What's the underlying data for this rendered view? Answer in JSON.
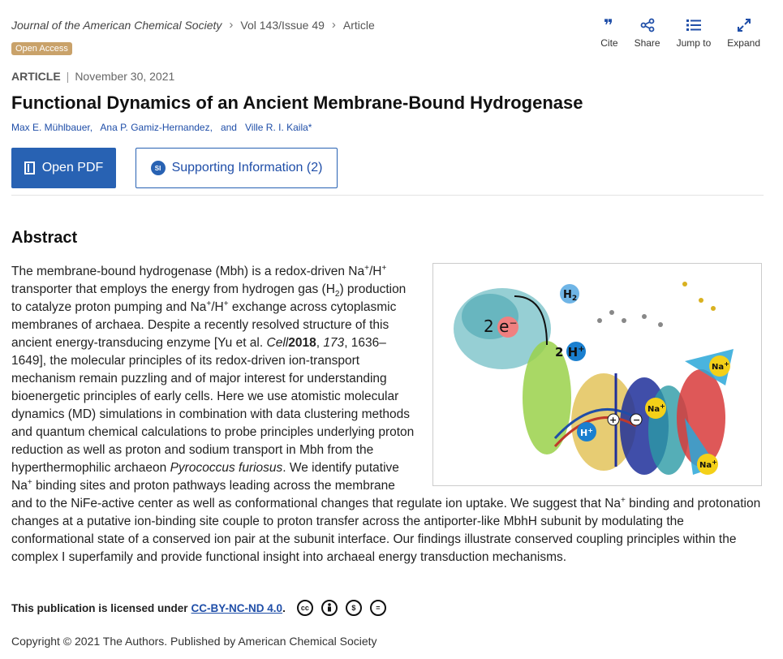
{
  "breadcrumb": [
    "Journal of the American Chemical Society",
    "Vol 143/Issue 49",
    "Article"
  ],
  "badge": "Open Access",
  "tools": [
    {
      "label": "Cite",
      "icon": "quote-icon"
    },
    {
      "label": "Share",
      "icon": "share-icon"
    },
    {
      "label": "Jump to",
      "icon": "list-icon"
    },
    {
      "label": "Expand",
      "icon": "expand-icon"
    }
  ],
  "article": {
    "type": "ARTICLE",
    "date": "November 30, 2021",
    "title": "Functional Dynamics of an Ancient Membrane-Bound Hydrogenase",
    "authors": [
      "Max E. Mühlbauer,",
      "Ana P. Gamiz-Hernandez,",
      "and",
      "Ville R. I. Kaila*"
    ]
  },
  "buttons": {
    "pdf": "Open PDF",
    "si": "Supporting Information (2)",
    "si_badge": "SI"
  },
  "abstract_heading": "Abstract",
  "figure": {
    "labels": [
      "H",
      "2",
      "2 e",
      "−",
      "2 H",
      "+",
      "Na",
      "+",
      "Na",
      "+",
      "Na",
      "+",
      "H",
      "+",
      "+",
      "−"
    ]
  },
  "abstract": {
    "p1": "The membrane-bound hydrogenase (Mbh) is a redox-driven Na",
    "sup_plus": "+",
    "p2": "/H",
    "p3": " transporter that employs the energy from hydrogen gas (H",
    "sub_2": "2",
    "p4": ") production to catalyze proton pumping and Na",
    "p5": "/H",
    "p6": " exchange across cytoplasmic membranes of archaea. Despite a recently resolved structure of this ancient energy-transducing enzyme [Yu et al. ",
    "journal": "Cell",
    "year": "2018",
    "vol": "173",
    "pages": ", 1636–1649], the molecular principles of its redox-driven ion-transport mechanism remain puzzling and of major interest for understanding bioenergetic principles of early cells. Here we use atomistic molecular dynamics (MD) simulations in combination with data clustering methods and quantum chemical calculations to probe principles underlying proton reduction as well as proton and sodium transport in Mbh from the hyperthermophilic archaeon ",
    "species": "Pyrococcus furiosus",
    "p7": ". We identify putative Na",
    "p8": " binding sites and proton pathways leading across the membrane and to the NiFe-active center as well as conformational changes that regulate ion uptake. We suggest that Na",
    "p9": " binding and protonation changes at a putative ion-binding site couple to proton transfer across the antiporter-like MbhH subunit by modulating the conformational state of a conserved ion pair at the subunit interface. Our findings illustrate conserved coupling principles within the complex I superfamily and provide functional insight into archaeal energy transduction mechanisms."
  },
  "license": {
    "text": "This publication is licensed under",
    "link": "CC-BY-NC-ND 4.0",
    "after": ".",
    "icons": [
      "cc",
      "by",
      "nc",
      "nd"
    ],
    "icon_labels": [
      "cc",
      "",
      "$",
      "="
    ]
  },
  "copyright": "Copyright © 2021 The Authors. Published by American Chemical Society"
}
